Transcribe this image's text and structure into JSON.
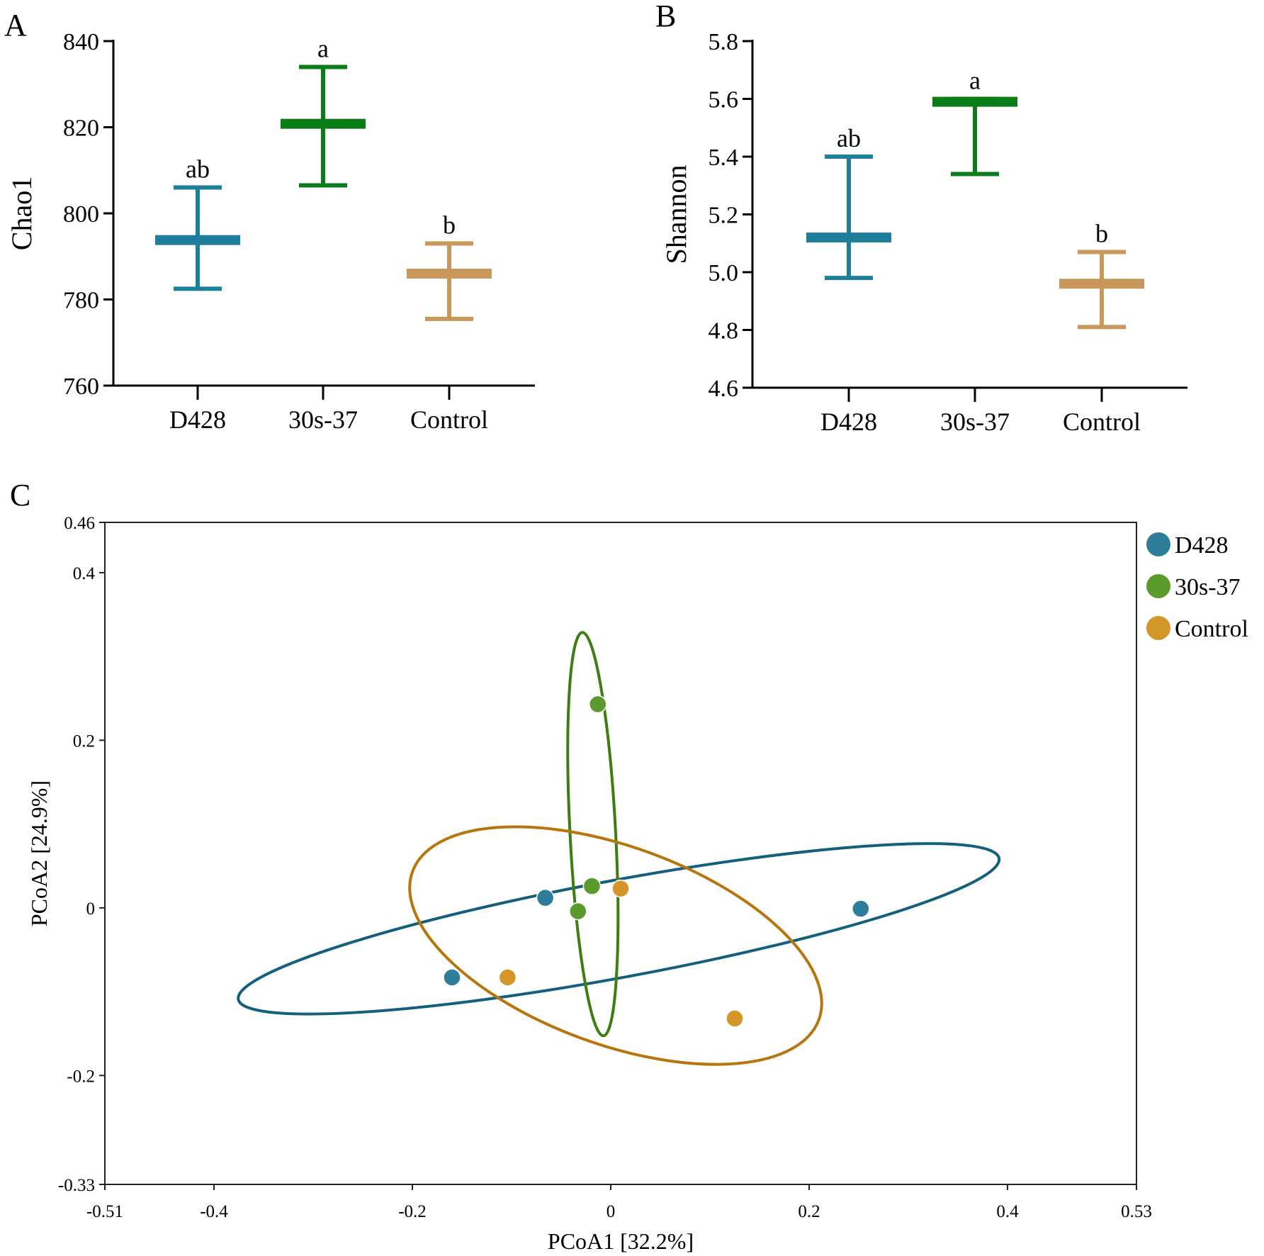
{
  "panels": {
    "A": "A",
    "B": "B",
    "C": "C"
  },
  "colors": {
    "D428": "#1f7f9a",
    "30s-37": "#0b7d18",
    "Control": "#c8975a",
    "D428_pcoa": "#2e7d9a",
    "30s-37_pcoa": "#5b9a2c",
    "Control_pcoa": "#d39628",
    "D428_ellipse": "#135f7d",
    "30s-37_ellipse": "#3e7d10",
    "Control_ellipse": "#b8750e",
    "axis": "#000000"
  },
  "chart_data": [
    {
      "id": "A",
      "type": "mean-error",
      "ylabel": "Chao1",
      "ylim": [
        760,
        840
      ],
      "yticks": [
        760,
        780,
        800,
        820,
        840
      ],
      "categories": [
        "D428",
        "30s-37",
        "Control"
      ],
      "mean": [
        793.8,
        820.8,
        786.0
      ],
      "upper": [
        806.0,
        834.0,
        793.0
      ],
      "lower": [
        782.5,
        806.5,
        775.5
      ],
      "letters": [
        "ab",
        "a",
        "b"
      ]
    },
    {
      "id": "B",
      "type": "mean-error",
      "ylabel": "Shannon",
      "ylim": [
        4.6,
        5.8
      ],
      "yticks": [
        "4.6",
        "4.8",
        "5.0",
        "5.2",
        "5.4",
        "5.6",
        "5.8"
      ],
      "categories": [
        "D428",
        "30s-37",
        "Control"
      ],
      "mean": [
        5.12,
        5.59,
        4.96
      ],
      "upper": [
        5.4,
        5.6,
        5.07
      ],
      "lower": [
        4.98,
        5.34,
        4.81
      ],
      "letters": [
        "ab",
        "a",
        "b"
      ]
    },
    {
      "id": "C",
      "type": "scatter",
      "xlabel": "PCoA1 [32.2%]",
      "ylabel": "PCoA2 [24.9%]",
      "xlim": [
        -0.51,
        0.53
      ],
      "ylim": [
        -0.33,
        0.46
      ],
      "xticks": [
        "-0.51",
        "-0.4",
        "-0.2",
        "0",
        "0.2",
        "0.4",
        "0.53"
      ],
      "yticks": [
        "-0.33",
        "-0.2",
        "0",
        "0.2",
        "0.4",
        "0.46"
      ],
      "legend_position": "top-right",
      "series": [
        {
          "name": "D428",
          "points": [
            [
              -0.16,
              -0.083
            ],
            [
              -0.066,
              0.012
            ],
            [
              0.252,
              -0.001
            ]
          ],
          "ellipse": {
            "cx": 0.008,
            "cy": -0.025,
            "rx": 0.39,
            "ry": 0.058,
            "angle_deg": 10.5
          }
        },
        {
          "name": "30s-37",
          "points": [
            [
              -0.013,
              0.243
            ],
            [
              -0.019,
              0.026
            ],
            [
              -0.033,
              -0.004
            ]
          ],
          "ellipse": {
            "cx": -0.018,
            "cy": 0.088,
            "rx": 0.023,
            "ry": 0.241,
            "angle_deg": 3
          }
        },
        {
          "name": "Control",
          "points": [
            [
              -0.104,
              -0.083
            ],
            [
              0.01,
              0.023
            ],
            [
              0.125,
              -0.132
            ]
          ],
          "ellipse": {
            "cx": 0.005,
            "cy": -0.045,
            "rx": 0.218,
            "ry": 0.118,
            "angle_deg": -20
          }
        }
      ]
    }
  ]
}
